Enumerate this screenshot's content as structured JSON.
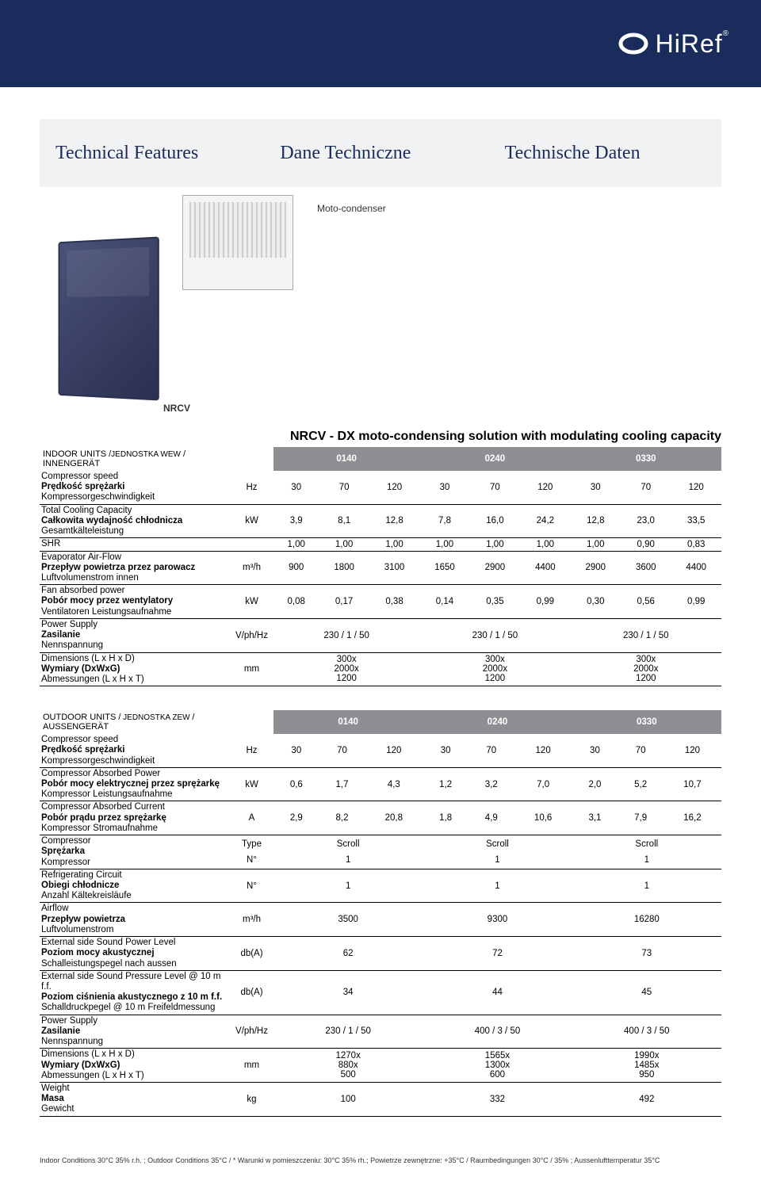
{
  "brand": "HiRef",
  "headings": {
    "en": "Technical Features",
    "pl": "Dane Techniczne",
    "de": "Technische Daten"
  },
  "diagram": {
    "nrcv_label": "NRCV",
    "condenser_label": "Moto-condenser"
  },
  "product_title": "NRCV - DX moto-condensing solution with modulating cooling capacity",
  "indoor_table": {
    "title_en": "INDOOR UNITS /",
    "title_pl": "JEDNOSTKA WEW",
    "title_de": " / INNENGERÄT",
    "models": [
      "0140",
      "0240",
      "0330"
    ],
    "rows": [
      {
        "labels": {
          "en": "Compressor speed",
          "pl": "Prędkość sprężarki",
          "de": "Kompressorgeschwindigkeit"
        },
        "unit": "Hz",
        "values": [
          "30",
          "70",
          "120",
          "30",
          "70",
          "120",
          "30",
          "70",
          "120"
        ],
        "span_mode": "1"
      },
      {
        "labels": {
          "en": "Total Cooling Capacity",
          "pl": "Całkowita wydajność chłodnicza",
          "de": "Gesamtkälteleistung"
        },
        "unit": "kW",
        "values": [
          "3,9",
          "8,1",
          "12,8",
          "7,8",
          "16,0",
          "24,2",
          "12,8",
          "23,0",
          "33,5"
        ],
        "span_mode": "1"
      },
      {
        "labels": {
          "en": "SHR",
          "pl": "",
          "de": ""
        },
        "unit": "",
        "values": [
          "1,00",
          "1,00",
          "1,00",
          "1,00",
          "1,00",
          "1,00",
          "1,00",
          "0,90",
          "0,83"
        ],
        "span_mode": "1"
      },
      {
        "labels": {
          "en": "Evaporator Air-Flow",
          "pl": "Przepływ powietrza przez parowacz",
          "de": "Luftvolumenstrom innen"
        },
        "unit": "m³/h",
        "values": [
          "900",
          "1800",
          "3100",
          "1650",
          "2900",
          "4400",
          "2900",
          "3600",
          "4400"
        ],
        "span_mode": "1"
      },
      {
        "labels": {
          "en": "Fan absorbed power",
          "pl": "Pobór mocy przez wentylatory",
          "de": "Ventilatoren Leistungsaufnahme"
        },
        "unit": "kW",
        "values": [
          "0,08",
          "0,17",
          "0,38",
          "0,14",
          "0,35",
          "0,99",
          "0,30",
          "0,56",
          "0,99"
        ],
        "span_mode": "1"
      },
      {
        "labels": {
          "en": "Power Supply",
          "pl": "Zasilanie",
          "de": "Nennspannung"
        },
        "unit": "V/ph/Hz",
        "values": [
          "230 / 1 / 50",
          "230 / 1 / 50",
          "230 / 1 / 50"
        ],
        "span_mode": "3"
      },
      {
        "labels": {
          "en": "Dimensions (L x H x D)",
          "pl": "Wymiary (DxWxG)",
          "de": "Abmessungen (L x H x T)"
        },
        "unit": "mm",
        "values": [
          "300x\n2000x\n1200",
          "300x\n2000x\n1200",
          "300x\n2000x\n1200"
        ],
        "span_mode": "3"
      }
    ]
  },
  "outdoor_table": {
    "title_en": "OUTDOOR UNITS /",
    "title_pl": " JEDNOSTKA ZEW ",
    "title_de": "/ AUSSENGERÄT",
    "models": [
      "0140",
      "0240",
      "0330"
    ],
    "rows": [
      {
        "labels": {
          "en": "Compressor speed",
          "pl": "Prędkość sprężarki",
          "de": "Kompressorgeschwindigkeit"
        },
        "unit": "Hz",
        "values": [
          "30",
          "70",
          "120",
          "30",
          "70",
          "120",
          "30",
          "70",
          "120"
        ],
        "span_mode": "1"
      },
      {
        "labels": {
          "en": "Compressor Absorbed Power",
          "pl": "Pobór mocy elektrycznej przez sprężarkę",
          "de": "Kompressor Leistungsaufnahme"
        },
        "unit": "kW",
        "values": [
          "0,6",
          "1,7",
          "4,3",
          "1,2",
          "3,2",
          "7,0",
          "2,0",
          "5,2",
          "10,7"
        ],
        "span_mode": "1"
      },
      {
        "labels": {
          "en": "Compressor Absorbed Current",
          "pl": "Pobór prądu przez sprężarkę",
          "de": "Kompressor Stromaufnahme"
        },
        "unit": "A",
        "values": [
          "2,9",
          "8,2",
          "20,8",
          "1,8",
          "4,9",
          "10,6",
          "3,1",
          "7,9",
          "16,2"
        ],
        "span_mode": "1"
      },
      {
        "labels": {
          "en": "Compressor",
          "pl": "Sprężarka",
          "de": "Kompressor"
        },
        "unit": "Type",
        "values": [
          "Scroll",
          "Scroll",
          "Scroll"
        ],
        "span_mode": "3",
        "second_unit": "N°",
        "second_values": [
          "1",
          "1",
          "1"
        ]
      },
      {
        "labels": {
          "en": "Refrigerating Circuit",
          "pl": "Obiegi chłodnicze",
          "de": "Anzahl Kältekreisläufe"
        },
        "unit": "N°",
        "values": [
          "1",
          "1",
          "1"
        ],
        "span_mode": "3"
      },
      {
        "labels": {
          "en": "Airflow",
          "pl": "Przepływ powietrza",
          "de": "Luftvolumenstrom"
        },
        "unit": "m³/h",
        "values": [
          "3500",
          "9300",
          "16280"
        ],
        "span_mode": "3"
      },
      {
        "labels": {
          "en": "External side Sound Power Level",
          "pl": "Poziom mocy akustycznej",
          "de": "Schalleistungspegel nach aussen"
        },
        "unit": "db(A)",
        "values": [
          "62",
          "72",
          "73"
        ],
        "span_mode": "3"
      },
      {
        "labels": {
          "en": "External side Sound Pressure Level @ 10 m f.f.",
          "pl": "Poziom ciśnienia akustycznego z 10 m f.f.",
          "de": "Schalldruckpegel @ 10 m Freifeldmessung"
        },
        "unit": "db(A)",
        "values": [
          "34",
          "44",
          "45"
        ],
        "span_mode": "3"
      },
      {
        "labels": {
          "en": "Power Supply",
          "pl": "Zasilanie",
          "de": "Nennspannung"
        },
        "unit": "V/ph/Hz",
        "values": [
          "230 / 1 / 50",
          "400 / 3 / 50",
          "400 / 3 / 50"
        ],
        "span_mode": "3"
      },
      {
        "labels": {
          "en": "Dimensions (L x H x D)",
          "pl": "Wymiary (DxWxG)",
          "de": "Abmessungen (L x H x T)"
        },
        "unit": "mm",
        "values": [
          "1270x\n880x\n500",
          "1565x\n1300x\n600",
          "1990x\n1485x\n950"
        ],
        "span_mode": "3"
      },
      {
        "labels": {
          "en": "Weight",
          "pl": "Masa",
          "de": "Gewicht"
        },
        "unit": "kg",
        "values": [
          "100",
          "332",
          "492"
        ],
        "span_mode": "3"
      }
    ]
  },
  "footnote": "Indoor Conditions 30°C 35% r.h. ; Outdoor Conditions 35°C / * Warunki w pomieszczeniu: 30°C 35% rh.; Powietrze zewnętrzne: +35°C  / Raumbedingungen 30°C / 35% ; Aussenlufttemperatur 35°C"
}
